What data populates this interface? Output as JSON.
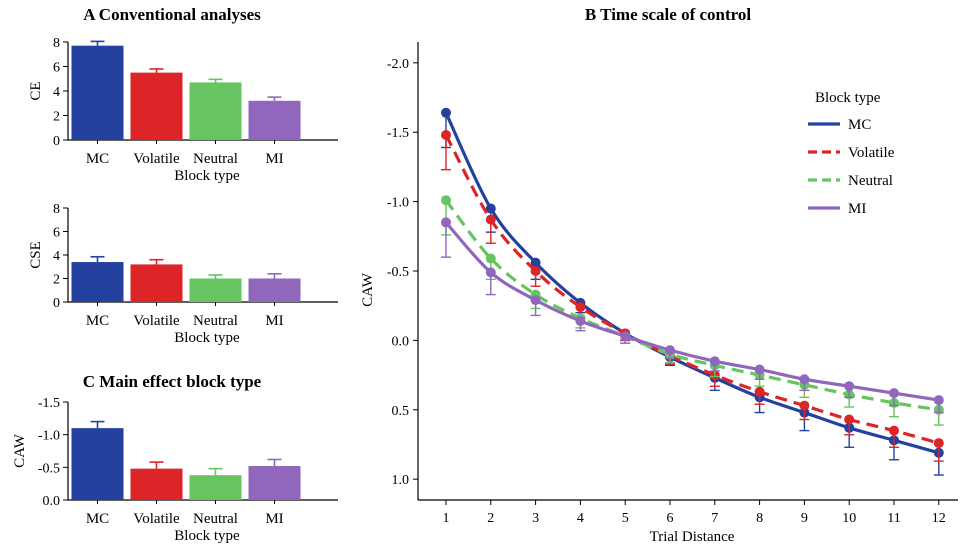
{
  "colors": {
    "MC": "#2441a0",
    "Volatile": "#dd2427",
    "Neutral": "#66c561",
    "MI": "#9167bd"
  },
  "panel_titles": {
    "A": "A Conventional analyses",
    "B": "B Time scale of control",
    "C": "C Main effect block type"
  },
  "chart_data": [
    {
      "id": "CE",
      "type": "bar",
      "title": "A Conventional analyses",
      "ylabel": "CE",
      "xlabel": "Block type",
      "categories": [
        "MC",
        "Volatile",
        "Neutral",
        "MI"
      ],
      "values": [
        7.7,
        5.5,
        4.7,
        3.2
      ],
      "errors": [
        0.35,
        0.3,
        0.25,
        0.3
      ],
      "ylim": [
        0,
        8
      ],
      "yticks": [
        "0",
        "2",
        "4",
        "6",
        "8"
      ],
      "ytick_values": [
        0,
        2,
        4,
        6,
        8
      ]
    },
    {
      "id": "CSE",
      "type": "bar",
      "title": "",
      "ylabel": "CSE",
      "xlabel": "Block type",
      "categories": [
        "MC",
        "Volatile",
        "Neutral",
        "MI"
      ],
      "values": [
        3.4,
        3.2,
        2.0,
        2.0
      ],
      "errors": [
        0.45,
        0.4,
        0.3,
        0.4
      ],
      "ylim": [
        0,
        8
      ],
      "yticks": [
        "0",
        "2",
        "4",
        "6",
        "8"
      ],
      "ytick_values": [
        0,
        2,
        4,
        6,
        8
      ]
    },
    {
      "id": "C",
      "type": "bar",
      "title": "C Main effect block type",
      "ylabel": "CAW",
      "xlabel": "Block type",
      "categories": [
        "MC",
        "Volatile",
        "Neutral",
        "MI"
      ],
      "values": [
        -1.1,
        -0.48,
        -0.38,
        -0.52
      ],
      "errors": [
        0.1,
        0.1,
        0.1,
        0.1
      ],
      "ylim": [
        0,
        -1.5
      ],
      "yticks": [
        "0.0",
        "-0.5",
        "-1.0",
        "-1.5"
      ],
      "ytick_values": [
        0,
        -0.5,
        -1.0,
        -1.5
      ]
    },
    {
      "id": "B",
      "type": "line",
      "title": "B Time scale of control",
      "ylabel": "CAW",
      "xlabel": "Trial Distance",
      "x": [
        1,
        2,
        3,
        4,
        5,
        6,
        7,
        8,
        9,
        10,
        11,
        12
      ],
      "ylim": [
        1.15,
        -2.15
      ],
      "yaxis_inverted": true,
      "yticks": [
        "-2.0",
        "-1.5",
        "-1.0",
        "-0.5",
        "0.0",
        "0.5",
        "1.0"
      ],
      "ytick_values": [
        -2.0,
        -1.5,
        -1.0,
        -0.5,
        0.0,
        0.5,
        1.0
      ],
      "legend_title": "Block type",
      "legend_position": "top-right",
      "series": [
        {
          "name": "MC",
          "style": "solid",
          "values": [
            -1.64,
            -0.95,
            -0.56,
            -0.27,
            -0.05,
            0.12,
            0.27,
            0.41,
            0.52,
            0.63,
            0.72,
            0.81
          ],
          "errors": [
            0.25,
            0.17,
            0.12,
            0.07,
            0.05,
            0.06,
            0.09,
            0.11,
            0.13,
            0.14,
            0.14,
            0.16
          ]
        },
        {
          "name": "Volatile",
          "style": "dashed",
          "values": [
            -1.48,
            -0.87,
            -0.5,
            -0.24,
            -0.05,
            0.11,
            0.25,
            0.37,
            0.47,
            0.57,
            0.65,
            0.74
          ],
          "errors": [
            0.25,
            0.17,
            0.11,
            0.07,
            0.05,
            0.06,
            0.08,
            0.09,
            0.1,
            0.11,
            0.12,
            0.13
          ]
        },
        {
          "name": "Neutral",
          "style": "dashed",
          "values": [
            -1.01,
            -0.59,
            -0.33,
            -0.16,
            -0.03,
            0.1,
            0.18,
            0.25,
            0.32,
            0.39,
            0.45,
            0.5
          ],
          "errors": [
            0.25,
            0.15,
            0.1,
            0.07,
            0.05,
            0.06,
            0.08,
            0.08,
            0.09,
            0.09,
            0.1,
            0.11
          ]
        },
        {
          "name": "MI",
          "style": "solid",
          "values": [
            -0.85,
            -0.49,
            -0.29,
            -0.14,
            -0.03,
            0.07,
            0.15,
            0.21,
            0.28,
            0.33,
            0.38,
            0.43
          ],
          "errors": [
            0.25,
            0.16,
            0.11,
            0.07,
            0.05,
            0.06,
            0.07,
            0.07,
            0.08,
            0.08,
            0.09,
            0.09
          ]
        }
      ]
    }
  ]
}
